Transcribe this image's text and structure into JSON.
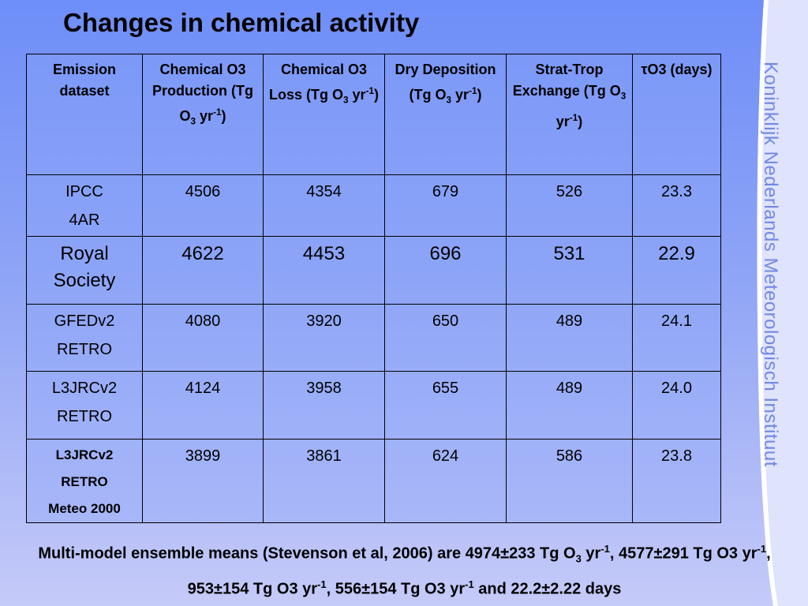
{
  "title": "Changes in chemical activity",
  "table": {
    "headers": [
      {
        "parts": [
          {
            "text": "Emission dataset"
          }
        ]
      },
      {
        "parts": [
          {
            "text": "Chemical O3 Production (Tg O"
          },
          {
            "text": "3",
            "style": "sub"
          },
          {
            "text": " yr"
          },
          {
            "text": "-1",
            "style": "sup"
          },
          {
            "text": ")"
          }
        ]
      },
      {
        "parts": [
          {
            "text": "Chemical O3 Loss (Tg O"
          },
          {
            "text": "3",
            "style": "sub"
          },
          {
            "text": " yr"
          },
          {
            "text": "-1",
            "style": "sup"
          },
          {
            "text": ")"
          }
        ]
      },
      {
        "parts": [
          {
            "text": "Dry Deposition (Tg O"
          },
          {
            "text": "3",
            "style": "sub"
          },
          {
            "text": " yr"
          },
          {
            "text": "-1",
            "style": "sup"
          },
          {
            "text": ")"
          }
        ]
      },
      {
        "parts": [
          {
            "text": "Strat-Trop Exchange (Tg O"
          },
          {
            "text": "3",
            "style": "sub"
          },
          {
            "text": " yr"
          },
          {
            "text": "-1",
            "style": "sup"
          },
          {
            "text": ")"
          }
        ]
      },
      {
        "parts": [
          {
            "text": "τO3 (days)"
          }
        ]
      }
    ],
    "rows": [
      {
        "label": [
          "IPCC",
          "4AR"
        ],
        "values": [
          "4506",
          "4354",
          "679",
          "526",
          "23.3"
        ]
      },
      {
        "label": [
          "Royal",
          "Society"
        ],
        "values": [
          "4622",
          "4453",
          "696",
          "531",
          "22.9"
        ]
      },
      {
        "label": [
          "GFEDv2",
          "RETRO"
        ],
        "values": [
          "4080",
          "3920",
          "650",
          "489",
          "24.1"
        ]
      },
      {
        "label": [
          "L3JRCv2",
          "RETRO"
        ],
        "values": [
          "4124",
          "3958",
          "655",
          "489",
          "24.0"
        ]
      },
      {
        "label": [
          "L3JRCv2",
          "RETRO",
          "Meteo 2000"
        ],
        "values": [
          "3899",
          "3861",
          "624",
          "586",
          "23.8"
        ]
      }
    ]
  },
  "footer": {
    "parts": [
      {
        "text": "Multi-model ensemble means (Stevenson et al, 2006) are 4974±233 Tg O"
      },
      {
        "text": "3",
        "style": "sub"
      },
      {
        "text": " yr"
      },
      {
        "text": "-1",
        "style": "sup"
      },
      {
        "text": ", 4577±291 Tg O3 yr"
      },
      {
        "text": "-1",
        "style": "sup"
      },
      {
        "text": ", 953±154 Tg O3 yr"
      },
      {
        "text": "-1",
        "style": "sup"
      },
      {
        "text": ", 556±154 Tg O3 yr"
      },
      {
        "text": "-1",
        "style": "sup"
      },
      {
        "text": " and 22.2±2.22 days"
      }
    ]
  },
  "side_text": "Koninklijk Nederlands Meteorologisch Instituut"
}
